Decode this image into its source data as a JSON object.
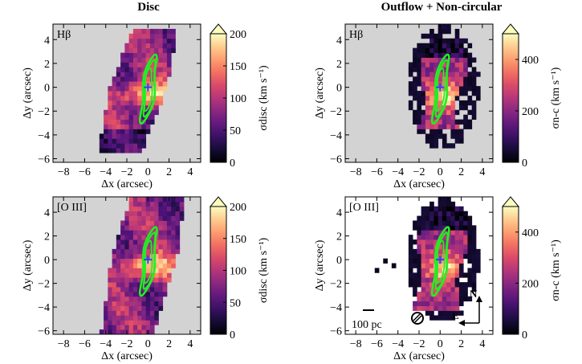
{
  "figure": {
    "column_titles": [
      "Disc",
      "Outflow + Non-circular"
    ],
    "colorbar_ticks": {
      "disc": [
        0,
        50,
        100,
        150,
        200
      ],
      "noncirc": [
        0,
        200,
        400
      ]
    },
    "colorbar_labels": {
      "disc": "σdisc (km s⁻¹)",
      "noncirc": "σn-c (km s⁻¹)"
    },
    "annotations": {
      "scalebar_label": "100 pc",
      "compass_north": "N",
      "compass_east": "E"
    }
  },
  "chart_data": [
    {
      "type": "heatmap",
      "panel": "top-left",
      "line_label": "Hβ",
      "title": "Disc",
      "xlabel": "Δx (arcsec)",
      "ylabel": "Δy (arcsec)",
      "xlim": [
        -9,
        5
      ],
      "ylim": [
        -6.3,
        5.3
      ],
      "xticks": [
        -8,
        -6,
        -4,
        -2,
        0,
        2,
        4
      ],
      "yticks": [
        -6,
        -4,
        -2,
        0,
        2,
        4
      ],
      "colorbar": {
        "label": "σdisc (km s⁻¹)",
        "range": [
          0,
          200
        ],
        "ticks": [
          0,
          50,
          100,
          150,
          200
        ],
        "colormap": "magma"
      },
      "background_color": "#d3d3d3",
      "contour_color": "#22ee22",
      "center_marker_color": "#2244ff"
    },
    {
      "type": "heatmap",
      "panel": "top-right",
      "line_label": "Hβ",
      "title": "Outflow + Non-circular",
      "xlabel": "Δx (arcsec)",
      "ylabel": "Δy (arcsec)",
      "xlim": [
        -9,
        5
      ],
      "ylim": [
        -6.3,
        5.3
      ],
      "xticks": [
        -8,
        -6,
        -4,
        -2,
        0,
        2,
        4
      ],
      "yticks": [
        -6,
        -4,
        -2,
        0,
        2,
        4
      ],
      "colorbar": {
        "label": "σn-c (km s⁻¹)",
        "range": [
          0,
          500
        ],
        "ticks": [
          0,
          200,
          400
        ],
        "colormap": "magma"
      },
      "background_color": "#d3d3d3",
      "contour_color": "#22ee22",
      "center_marker_color": "#2244ff"
    },
    {
      "type": "heatmap",
      "panel": "bottom-left",
      "line_label": "[O III]",
      "xlabel": "Δx (arcsec)",
      "ylabel": "Δy (arcsec)",
      "xlim": [
        -9,
        5
      ],
      "ylim": [
        -6.3,
        5.3
      ],
      "xticks": [
        -8,
        -6,
        -4,
        -2,
        0,
        2,
        4
      ],
      "yticks": [
        -6,
        -4,
        -2,
        0,
        2,
        4
      ],
      "colorbar": {
        "label": "σdisc (km s⁻¹)",
        "range": [
          0,
          200
        ],
        "ticks": [
          0,
          50,
          100,
          150,
          200
        ],
        "colormap": "magma"
      },
      "background_color": "#d3d3d3",
      "contour_color": "#22ee22",
      "center_marker_color": "#2244ff"
    },
    {
      "type": "heatmap",
      "panel": "bottom-right",
      "line_label": "[O III]",
      "xlabel": "Δx (arcsec)",
      "ylabel": "Δy (arcsec)",
      "xlim": [
        -9,
        5
      ],
      "ylim": [
        -6.3,
        5.3
      ],
      "xticks": [
        -8,
        -6,
        -4,
        -2,
        0,
        2,
        4
      ],
      "yticks": [
        -6,
        -4,
        -2,
        0,
        2,
        4
      ],
      "colorbar": {
        "label": "σn-c (km s⁻¹)",
        "range": [
          0,
          500
        ],
        "ticks": [
          0,
          200,
          400
        ],
        "colormap": "magma"
      },
      "background_color": "#ffffff",
      "contour_color": "#22ee22",
      "center_marker_color": "#2244ff"
    }
  ]
}
